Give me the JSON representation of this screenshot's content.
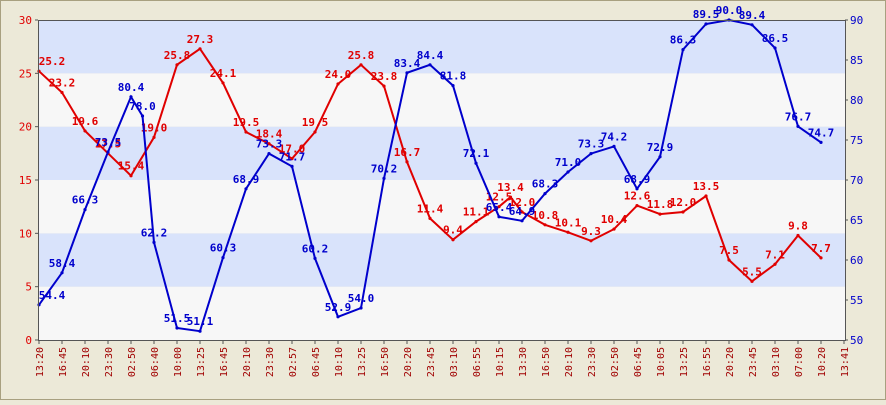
{
  "chart_data": {
    "type": "line",
    "title": "",
    "xlabel": "",
    "ylabel_left": "",
    "ylabel_right": "",
    "grid": true,
    "categories": [
      "13:20",
      "16:45",
      "20:10",
      "23:30",
      "02:50",
      "06:40",
      "10:00",
      "13:25",
      "16:45",
      "20:10",
      "23:30",
      "02:57",
      "06:45",
      "10:10",
      "13:25",
      "16:50",
      "20:20",
      "23:45",
      "03:10",
      "06:55",
      "10:15",
      "13:30",
      "16:50",
      "20:10",
      "23:30",
      "02:50",
      "06:45",
      "10:05",
      "13:25",
      "16:55",
      "20:20",
      "23:45",
      "03:10",
      "07:00",
      "10:20",
      "13:41"
    ],
    "y_left": {
      "min": 0,
      "max": 30,
      "ticks": [
        0,
        5,
        10,
        15,
        20,
        25,
        30
      ]
    },
    "y_right": {
      "min": 50,
      "max": 90,
      "ticks": [
        50,
        55,
        60,
        65,
        70,
        75,
        80,
        85,
        90
      ]
    },
    "series": [
      {
        "axis": "left",
        "color": "#e00000",
        "points": [
          {
            "x": 0.0,
            "y": 25.2,
            "label": "25.2"
          },
          {
            "x": 1.0,
            "y": 23.2,
            "label": "23.2"
          },
          {
            "x": 2.0,
            "y": 19.6,
            "label": "19.6"
          },
          {
            "x": 3.0,
            "y": 17.5,
            "label": "17.5"
          },
          {
            "x": 4.0,
            "y": 15.4,
            "label": "15.4"
          },
          {
            "x": 5.0,
            "y": 19.0,
            "label": "19.0"
          },
          {
            "x": 6.0,
            "y": 25.8,
            "label": "25.8"
          },
          {
            "x": 7.0,
            "y": 27.3,
            "label": "27.3"
          },
          {
            "x": 8.0,
            "y": 24.1,
            "label": "24.1"
          },
          {
            "x": 9.0,
            "y": 19.5,
            "label": "19.5"
          },
          {
            "x": 10.0,
            "y": 18.4,
            "label": "18.4"
          },
          {
            "x": 11.0,
            "y": 17.0,
            "label": "17.0"
          },
          {
            "x": 12.0,
            "y": 19.5,
            "label": "19.5"
          },
          {
            "x": 13.0,
            "y": 24.0,
            "label": "24.0"
          },
          {
            "x": 14.0,
            "y": 25.8,
            "label": "25.8"
          },
          {
            "x": 15.0,
            "y": 23.8,
            "label": "23.8"
          },
          {
            "x": 16.0,
            "y": 16.7,
            "label": "16.7"
          },
          {
            "x": 17.0,
            "y": 11.4,
            "label": "11.4"
          },
          {
            "x": 18.0,
            "y": 9.4,
            "label": "9.4"
          },
          {
            "x": 19.0,
            "y": 11.1,
            "label": "11.1"
          },
          {
            "x": 20.0,
            "y": 12.5,
            "label": "12.5"
          },
          {
            "x": 20.5,
            "y": 13.4,
            "label": "13.4"
          },
          {
            "x": 21.0,
            "y": 12.0,
            "label": "12.0"
          },
          {
            "x": 22.0,
            "y": 10.8,
            "label": "10.8"
          },
          {
            "x": 23.0,
            "y": 10.1,
            "label": "10.1"
          },
          {
            "x": 24.0,
            "y": 9.3,
            "label": "9.3"
          },
          {
            "x": 25.0,
            "y": 10.4,
            "label": "10.4"
          },
          {
            "x": 26.0,
            "y": 12.6,
            "label": "12.6"
          },
          {
            "x": 27.0,
            "y": 11.8,
            "label": "11.8"
          },
          {
            "x": 28.0,
            "y": 12.0,
            "label": "12.0"
          },
          {
            "x": 29.0,
            "y": 13.5,
            "label": "13.5"
          },
          {
            "x": 30.0,
            "y": 7.5,
            "label": "7.5"
          },
          {
            "x": 31.0,
            "y": 5.5,
            "label": "5.5"
          },
          {
            "x": 32.0,
            "y": 7.1,
            "label": "7.1"
          },
          {
            "x": 33.0,
            "y": 9.8,
            "label": "9.8"
          },
          {
            "x": 34.0,
            "y": 7.7,
            "label": "7.7"
          }
        ]
      },
      {
        "axis": "right",
        "color": "#0000cc",
        "points": [
          {
            "x": 0.0,
            "y": 54.4,
            "label": "54.4"
          },
          {
            "x": 1.0,
            "y": 58.4,
            "label": "58.4"
          },
          {
            "x": 2.0,
            "y": 66.3,
            "label": "66.3"
          },
          {
            "x": 3.0,
            "y": 73.5,
            "label": "73.5"
          },
          {
            "x": 4.0,
            "y": 80.4,
            "label": "80.4"
          },
          {
            "x": 4.5,
            "y": 78.0,
            "label": "78.0"
          },
          {
            "x": 5.0,
            "y": 62.2,
            "label": "62.2"
          },
          {
            "x": 6.0,
            "y": 51.5,
            "label": "51.5"
          },
          {
            "x": 7.0,
            "y": 51.1,
            "label": "51.1"
          },
          {
            "x": 8.0,
            "y": 60.3,
            "label": "60.3"
          },
          {
            "x": 9.0,
            "y": 68.9,
            "label": "68.9"
          },
          {
            "x": 10.0,
            "y": 73.3,
            "label": "73.3"
          },
          {
            "x": 11.0,
            "y": 71.7,
            "label": "71.7"
          },
          {
            "x": 12.0,
            "y": 60.2,
            "label": "60.2"
          },
          {
            "x": 13.0,
            "y": 52.9,
            "label": "52.9"
          },
          {
            "x": 14.0,
            "y": 54.0,
            "label": "54.0"
          },
          {
            "x": 15.0,
            "y": 70.2,
            "label": "70.2"
          },
          {
            "x": 16.0,
            "y": 83.4,
            "label": "83.4"
          },
          {
            "x": 17.0,
            "y": 84.4,
            "label": "84.4"
          },
          {
            "x": 18.0,
            "y": 81.8,
            "label": "81.8"
          },
          {
            "x": 19.0,
            "y": 72.1,
            "label": "72.1"
          },
          {
            "x": 20.0,
            "y": 65.4,
            "label": "65.4"
          },
          {
            "x": 21.0,
            "y": 64.9,
            "label": "64.9"
          },
          {
            "x": 22.0,
            "y": 68.3,
            "label": "68.3"
          },
          {
            "x": 23.0,
            "y": 71.0,
            "label": "71.0"
          },
          {
            "x": 24.0,
            "y": 73.3,
            "label": "73.3"
          },
          {
            "x": 25.0,
            "y": 74.2,
            "label": "74.2"
          },
          {
            "x": 26.0,
            "y": 68.9,
            "label": "68.9"
          },
          {
            "x": 27.0,
            "y": 72.9,
            "label": "72.9"
          },
          {
            "x": 28.0,
            "y": 86.3,
            "label": "86.3"
          },
          {
            "x": 29.0,
            "y": 89.5,
            "label": "89.5"
          },
          {
            "x": 30.0,
            "y": 90.0,
            "label": "90.0"
          },
          {
            "x": 31.0,
            "y": 89.4,
            "label": "89.4"
          },
          {
            "x": 32.0,
            "y": 86.5,
            "label": "86.5"
          },
          {
            "x": 33.0,
            "y": 76.7,
            "label": "76.7"
          },
          {
            "x": 34.0,
            "y": 74.7,
            "label": "74.7"
          }
        ]
      }
    ]
  }
}
